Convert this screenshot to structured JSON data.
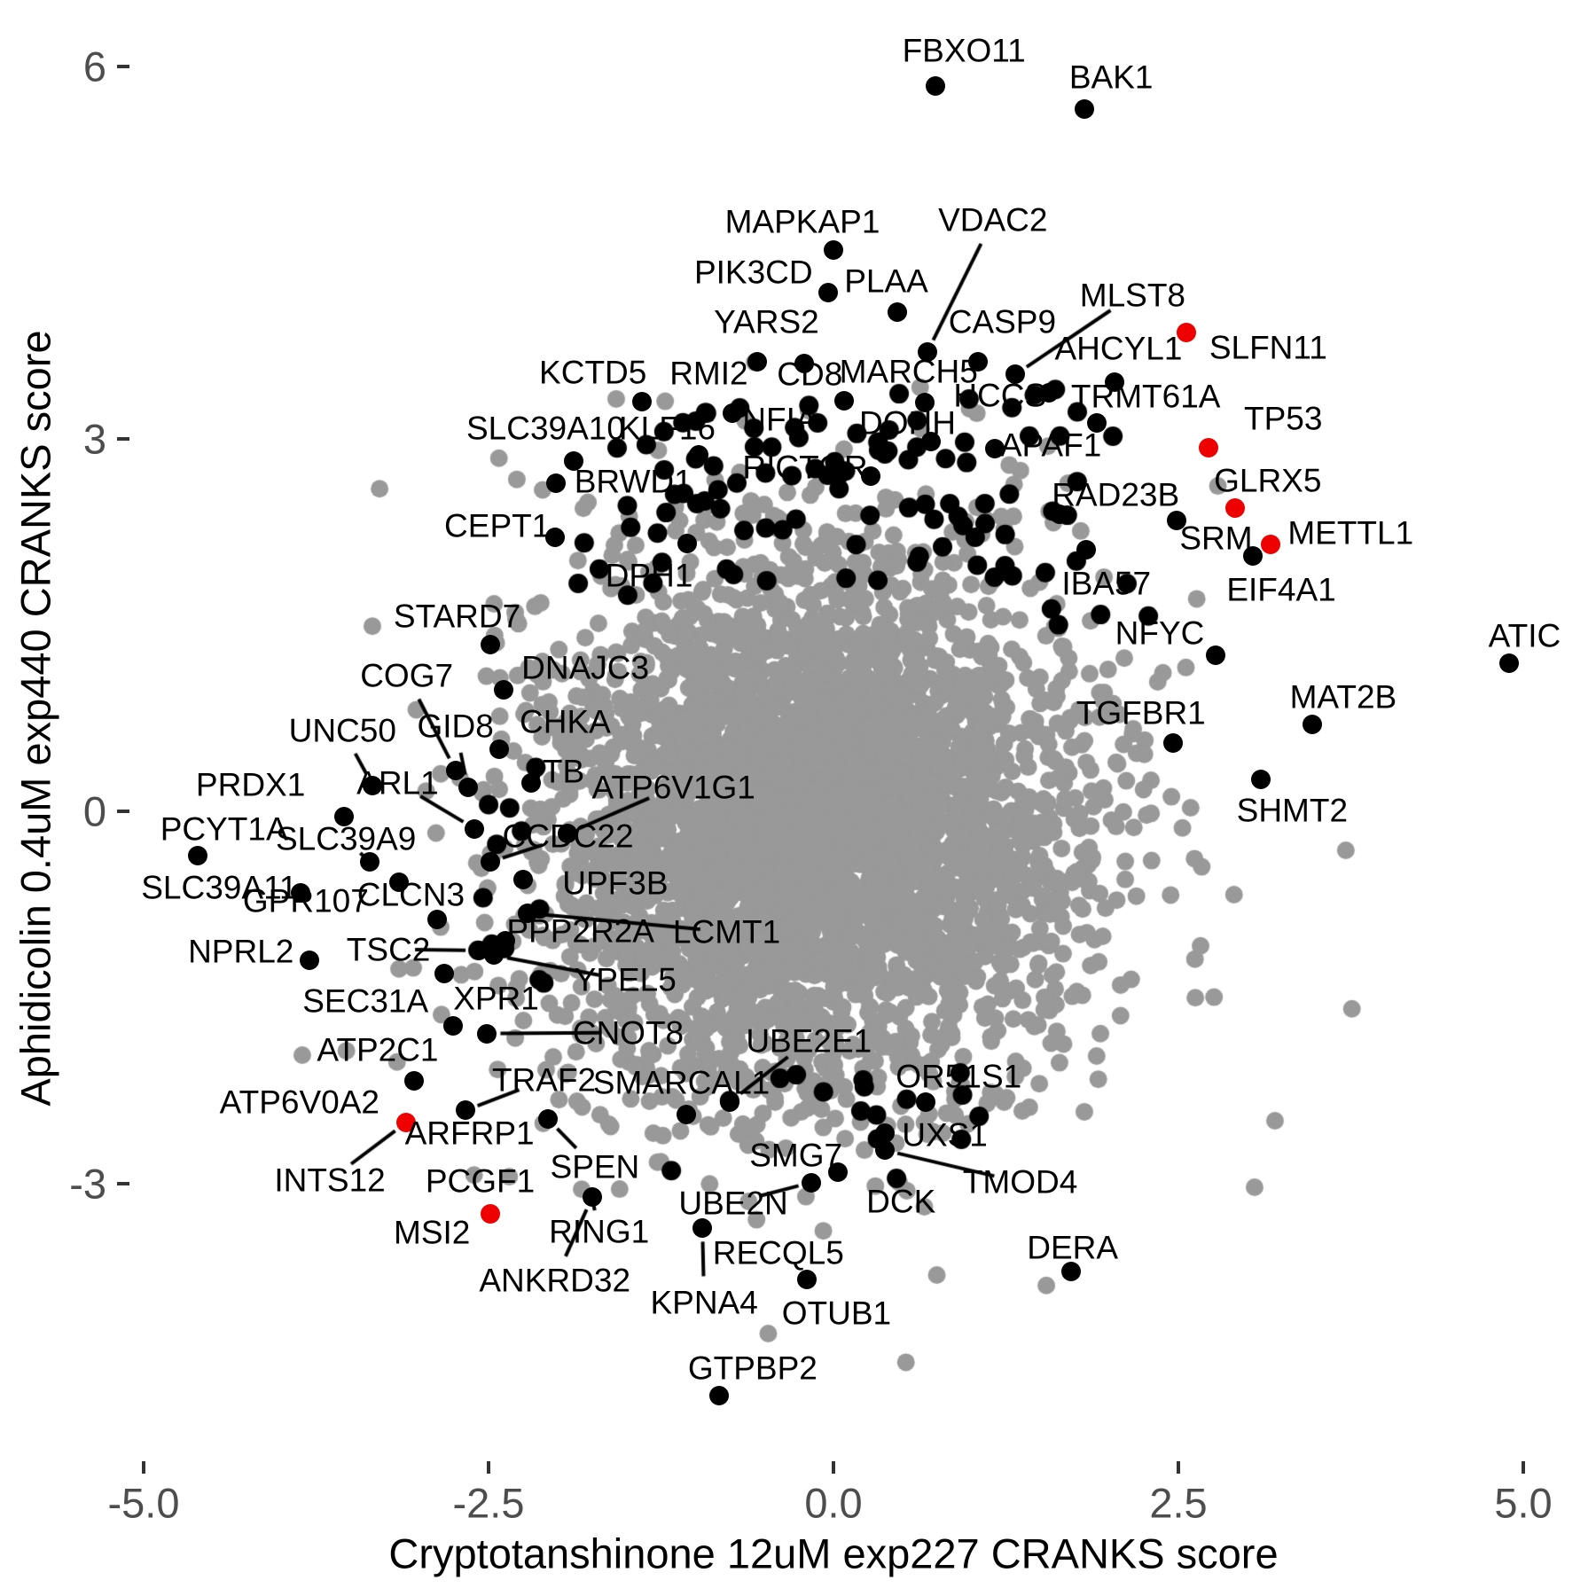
{
  "chart_data": {
    "type": "scatter",
    "title": "",
    "xlabel": "Cryptotanshinone 12uM exp227 CRANKS score",
    "ylabel": "Aphidicolin 0.4uM exp440 CRANKS score",
    "xlim": [
      -6.0,
      5.5
    ],
    "ylim": [
      -6.3,
      6.5
    ],
    "grid": false,
    "legend": "none",
    "xticks": [
      {
        "v": -5.0,
        "label": "-5.0"
      },
      {
        "v": -2.5,
        "label": "-2.5"
      },
      {
        "v": 0.0,
        "label": "0.0"
      },
      {
        "v": 2.5,
        "label": "2.5"
      },
      {
        "v": 5.0,
        "label": "5.0"
      }
    ],
    "yticks": [
      {
        "v": 6,
        "label": "6"
      },
      {
        "v": 3,
        "label": "3"
      },
      {
        "v": 0,
        "label": "0"
      },
      {
        "v": -3,
        "label": "-3"
      }
    ],
    "colors": {
      "point_default": "#000000",
      "point_highlight": "#ee0000",
      "cloud": "#999999",
      "axis_text": "#4d4d4d",
      "axis_title": "#000000"
    },
    "labeled_points": [
      {
        "name": "FBXO11",
        "x": 0.74,
        "y": 5.84,
        "ox": 32,
        "oy": -40,
        "red": false,
        "dot": true,
        "seg": false
      },
      {
        "name": "BAK1",
        "x": 1.82,
        "y": 5.66,
        "ox": 30,
        "oy": -36,
        "red": false,
        "dot": true,
        "seg": false
      },
      {
        "name": "MAPKAP1",
        "x": 0.0,
        "y": 4.52,
        "ox": -35,
        "oy": -32,
        "red": false,
        "dot": true,
        "seg": false
      },
      {
        "name": "PIK3CD",
        "x": -0.04,
        "y": 4.18,
        "ox": -84,
        "oy": -23,
        "red": false,
        "dot": true,
        "seg": false
      },
      {
        "name": "PLAA",
        "x": 0.46,
        "y": 4.02,
        "ox": -12,
        "oy": -35,
        "red": false,
        "dot": true,
        "seg": false
      },
      {
        "name": "VDAC2",
        "x": 0.68,
        "y": 3.7,
        "ox": 74,
        "oy": -149,
        "red": false,
        "dot": true,
        "seg": true
      },
      {
        "name": "YARS2",
        "x": -0.55,
        "y": 3.62,
        "ox": 10,
        "oy": -45,
        "red": false,
        "dot": true,
        "seg": false
      },
      {
        "name": "MLST8",
        "x": 1.32,
        "y": 3.52,
        "ox": 132,
        "oy": -89,
        "red": false,
        "dot": true,
        "seg": true
      },
      {
        "name": "CASP9",
        "x": 1.05,
        "y": 3.62,
        "ox": 27,
        "oy": -45,
        "red": false,
        "dot": true,
        "seg": false
      },
      {
        "name": "AHCYL1",
        "x": 2.04,
        "y": 3.46,
        "ox": 4,
        "oy": -38,
        "red": false,
        "dot": true,
        "seg": false
      },
      {
        "name": "SLFN11",
        "x": 2.56,
        "y": 3.86,
        "ox": 92,
        "oy": 17,
        "red": true,
        "dot": true,
        "seg": false
      },
      {
        "name": "KCTD5",
        "x": -1.39,
        "y": 3.3,
        "ox": -55,
        "oy": -33,
        "red": false,
        "dot": true,
        "seg": false
      },
      {
        "name": "RMI2",
        "x": -0.73,
        "y": 3.21,
        "ox": -27,
        "oy": -45,
        "red": false,
        "dot": true,
        "seg": false
      },
      {
        "name": "CD8",
        "x": -0.21,
        "y": 3.61,
        "ox": 6,
        "oy": 12,
        "red": false,
        "dot": true,
        "seg": false
      },
      {
        "name": "MARCH5",
        "x": 0.66,
        "y": 3.29,
        "ox": -18,
        "oy": -35,
        "red": false,
        "dot": true,
        "seg": false
      },
      {
        "name": "HCCS",
        "x": 1.56,
        "y": 3.37,
        "ox": -55,
        "oy": 3,
        "red": false,
        "dot": true,
        "seg": false
      },
      {
        "name": "TRMT61A",
        "x": 1.91,
        "y": 3.13,
        "ox": 55,
        "oy": -30,
        "red": false,
        "dot": true,
        "seg": false
      },
      {
        "name": "SLC39A10",
        "x": -1.88,
        "y": 2.82,
        "ox": -32,
        "oy": -37,
        "red": false,
        "dot": true,
        "seg": false
      },
      {
        "name": "KLF16",
        "x": -0.98,
        "y": 2.87,
        "ox": -35,
        "oy": -30,
        "red": false,
        "dot": true,
        "seg": false
      },
      {
        "name": "NFIA",
        "x": 0.08,
        "y": 3.31,
        "ox": -73,
        "oy": 21,
        "red": false,
        "dot": true,
        "seg": false
      },
      {
        "name": "DOHH",
        "x": 0.71,
        "y": 2.98,
        "ox": -27,
        "oy": -21,
        "red": false,
        "dot": true,
        "seg": false
      },
      {
        "name": "TP53",
        "x": 2.72,
        "y": 2.93,
        "ox": 84,
        "oy": -33,
        "red": true,
        "dot": true,
        "seg": false
      },
      {
        "name": "APAF1",
        "x": 1.17,
        "y": 2.92,
        "ox": 63,
        "oy": -4,
        "red": false,
        "dot": true,
        "seg": false
      },
      {
        "name": "RICTOR",
        "x": 0.27,
        "y": 2.7,
        "ox": -74,
        "oy": -10,
        "red": false,
        "dot": true,
        "seg": false
      },
      {
        "name": "GLRX5",
        "x": 2.91,
        "y": 2.44,
        "ox": 37,
        "oy": -31,
        "red": true,
        "dot": true,
        "seg": false
      },
      {
        "name": "BRWD1",
        "x": -2.01,
        "y": 2.64,
        "ox": 87,
        "oy": -2,
        "red": false,
        "dot": true,
        "seg": false
      },
      {
        "name": "RAD23B",
        "x": 1.64,
        "y": 2.39,
        "ox": 63,
        "oy": -22,
        "red": false,
        "dot": true,
        "seg": false
      },
      {
        "name": "SRM",
        "x": 2.49,
        "y": 2.34,
        "ox": 44,
        "oy": 20,
        "red": false,
        "dot": true,
        "seg": false
      },
      {
        "name": "METTL1",
        "x": 3.17,
        "y": 2.15,
        "ox": 90,
        "oy": -13,
        "red": true,
        "dot": true,
        "seg": false
      },
      {
        "name": "CEPT1",
        "x": -2.02,
        "y": 2.21,
        "ox": -65,
        "oy": -13,
        "red": false,
        "dot": true,
        "seg": false
      },
      {
        "name": "IBA57",
        "x": 1.83,
        "y": 2.11,
        "ox": 23,
        "oy": 38,
        "red": false,
        "dot": true,
        "seg": false
      },
      {
        "name": "EIF4A1",
        "x": 3.04,
        "y": 2.06,
        "ox": 32,
        "oy": 38,
        "red": false,
        "dot": true,
        "seg": false
      },
      {
        "name": "DPH1",
        "x": -1.06,
        "y": 2.16,
        "ox": -43,
        "oy": 36,
        "red": false,
        "dot": true,
        "seg": false
      },
      {
        "name": "NFYC",
        "x": 2.77,
        "y": 1.26,
        "ox": -63,
        "oy": -25,
        "red": false,
        "dot": true,
        "seg": false
      },
      {
        "name": "ATIC",
        "x": 4.9,
        "y": 1.19,
        "ox": 17,
        "oy": -31,
        "red": false,
        "dot": true,
        "seg": false
      },
      {
        "name": "STARD7",
        "x": -2.49,
        "y": 1.34,
        "ox": -37,
        "oy": -32,
        "red": false,
        "dot": true,
        "seg": false
      },
      {
        "name": "MAT2B",
        "x": 3.47,
        "y": 0.7,
        "ox": 35,
        "oy": -31,
        "red": false,
        "dot": true,
        "seg": false
      },
      {
        "name": "TGFBR1",
        "x": 2.46,
        "y": 0.55,
        "ox": -36,
        "oy": -34,
        "red": false,
        "dot": true,
        "seg": false
      },
      {
        "name": "SHMT2",
        "x": 3.1,
        "y": 0.26,
        "ox": 35,
        "oy": 35,
        "red": false,
        "dot": true,
        "seg": false
      },
      {
        "name": "COG7",
        "x": -2.74,
        "y": 0.33,
        "ox": -55,
        "oy": -107,
        "red": false,
        "dot": true,
        "seg": true
      },
      {
        "name": "DNAJC3",
        "x": -2.39,
        "y": 0.98,
        "ox": 92,
        "oy": -25,
        "red": false,
        "dot": true,
        "seg": false
      },
      {
        "name": "UNC50",
        "x": -3.34,
        "y": 0.21,
        "ox": -34,
        "oy": -62,
        "red": false,
        "dot": true,
        "seg": true
      },
      {
        "name": "GID8",
        "x": -2.65,
        "y": 0.19,
        "ox": -14,
        "oy": -69,
        "red": false,
        "dot": true,
        "seg": true
      },
      {
        "name": "ARL1",
        "x": -2.6,
        "y": -0.14,
        "ox": -87,
        "oy": -52,
        "red": false,
        "dot": true,
        "seg": true
      },
      {
        "name": "CHKA",
        "x": -2.42,
        "y": 0.5,
        "ox": 74,
        "oy": -31,
        "red": false,
        "dot": true,
        "seg": false
      },
      {
        "name": "JTB",
        "x": -2.19,
        "y": 0.23,
        "ox": 27,
        "oy": -13,
        "red": false,
        "dot": true,
        "seg": false
      },
      {
        "name": "ATP6V1G1",
        "x": -1.93,
        "y": -0.18,
        "ox": 120,
        "oy": -52,
        "red": false,
        "dot": true,
        "seg": true
      },
      {
        "name": "PRDX1",
        "x": -3.55,
        "y": -0.04,
        "ox": -105,
        "oy": -36,
        "red": false,
        "dot": true,
        "seg": false
      },
      {
        "name": "PCYT1A",
        "x": -4.61,
        "y": -0.36,
        "ox": 30,
        "oy": -30,
        "red": false,
        "dot": true,
        "seg": false
      },
      {
        "name": "SLC39A9",
        "x": -3.36,
        "y": -0.41,
        "ox": -27,
        "oy": -26,
        "red": false,
        "dot": true,
        "seg": true
      },
      {
        "name": "CCDC22",
        "x": -2.49,
        "y": -0.41,
        "ox": 88,
        "oy": -29,
        "red": false,
        "dot": true,
        "seg": true
      },
      {
        "name": "SLC39A11",
        "x": -3.86,
        "y": -0.66,
        "ox": -92,
        "oy": -6,
        "red": false,
        "dot": true,
        "seg": false
      },
      {
        "name": "GPR107",
        "x": -3.15,
        "y": -0.57,
        "ox": -105,
        "oy": 21,
        "red": false,
        "dot": true,
        "seg": false
      },
      {
        "name": "CLCN3",
        "x": -2.87,
        "y": -0.87,
        "ox": -30,
        "oy": -28,
        "red": false,
        "dot": true,
        "seg": false
      },
      {
        "name": "UPF3B",
        "x": -2.25,
        "y": -0.55,
        "ox": 104,
        "oy": 4,
        "red": false,
        "dot": true,
        "seg": false
      },
      {
        "name": "PPP2R2A",
        "x": -2.38,
        "y": -1.04,
        "ox": 85,
        "oy": -11,
        "red": false,
        "dot": true,
        "seg": false
      },
      {
        "name": "LCMT1",
        "x": -2.22,
        "y": -0.82,
        "ox": 225,
        "oy": 21,
        "red": false,
        "dot": true,
        "seg": true
      },
      {
        "name": "NPRL2",
        "x": -3.8,
        "y": -1.2,
        "ox": -77,
        "oy": -10,
        "red": false,
        "dot": true,
        "seg": false
      },
      {
        "name": "TSC2",
        "x": -2.57,
        "y": -1.12,
        "ox": -102,
        "oy": -1,
        "red": false,
        "dot": true,
        "seg": true
      },
      {
        "name": "YPEL5",
        "x": -2.46,
        "y": -1.16,
        "ox": 148,
        "oy": 28,
        "red": false,
        "dot": true,
        "seg": true
      },
      {
        "name": "SEC31A",
        "x": -2.82,
        "y": -1.31,
        "ox": -89,
        "oy": 31,
        "red": false,
        "dot": true,
        "seg": false
      },
      {
        "name": "XPR1",
        "x": -2.76,
        "y": -1.73,
        "ox": 49,
        "oy": -31,
        "red": false,
        "dot": true,
        "seg": false
      },
      {
        "name": "CNOT8",
        "x": -2.51,
        "y": -1.79,
        "ox": 159,
        "oy": -1,
        "red": false,
        "dot": true,
        "seg": true
      },
      {
        "name": "ATP2C1",
        "x": -3.04,
        "y": -2.17,
        "ox": -41,
        "oy": -35,
        "red": false,
        "dot": true,
        "seg": false
      },
      {
        "name": "UBE2E1",
        "x": -0.75,
        "y": -2.34,
        "ox": 89,
        "oy": -69,
        "red": false,
        "dot": true,
        "seg": true
      },
      {
        "name": "TRAF2",
        "x": -2.67,
        "y": -2.41,
        "ox": 89,
        "oy": -34,
        "red": false,
        "dot": true,
        "seg": true
      },
      {
        "name": "SMARCAL1",
        "x": -1.07,
        "y": -2.44,
        "ox": -5,
        "oy": -36,
        "red": false,
        "dot": true,
        "seg": false
      },
      {
        "name": "OR51S1",
        "x": 0.67,
        "y": -2.34,
        "ox": 37,
        "oy": -29,
        "red": false,
        "dot": true,
        "seg": false
      },
      {
        "name": "ATP6V0A2",
        "x": -3.87,
        "y": -2.34,
        "ox": 0,
        "oy": 0,
        "red": false,
        "dot": false,
        "seg": false
      },
      {
        "name": "ARFRP1",
        "x": -3.1,
        "y": -2.51,
        "ox": 72,
        "oy": 12,
        "red": true,
        "dot": true,
        "seg": false
      },
      {
        "name": "INTS12",
        "x": -3.65,
        "y": -2.97,
        "ox": 0,
        "oy": 0,
        "red": false,
        "dot": false,
        "seg": true,
        "segto": [
          -3.1,
          -2.51
        ]
      },
      {
        "name": "SPEN",
        "x": -2.07,
        "y": -2.48,
        "ox": 53,
        "oy": 54,
        "red": false,
        "dot": true,
        "seg": true
      },
      {
        "name": "PCGF1",
        "x": -2.49,
        "y": -3.24,
        "ox": -11,
        "oy": -37,
        "red": true,
        "dot": true,
        "seg": false
      },
      {
        "name": "MSI2",
        "x": -2.91,
        "y": -3.39,
        "ox": 0,
        "oy": 0,
        "red": false,
        "dot": false,
        "seg": false
      },
      {
        "name": "SMG7",
        "x": 0.03,
        "y": -2.91,
        "ox": -47,
        "oy": -19,
        "red": false,
        "dot": true,
        "seg": false
      },
      {
        "name": "UXS1",
        "x": 0.37,
        "y": -2.59,
        "ox": 68,
        "oy": 2,
        "red": false,
        "dot": true,
        "seg": false
      },
      {
        "name": "TMOD4",
        "x": 0.37,
        "y": -2.73,
        "ox": 153,
        "oy": 36,
        "red": false,
        "dot": true,
        "seg": true
      },
      {
        "name": "DCK",
        "x": 0.49,
        "y": -3.14,
        "ox": 0,
        "oy": 0,
        "red": false,
        "dot": false,
        "seg": false
      },
      {
        "name": "UBE2N",
        "x": -0.16,
        "y": -2.99,
        "ox": -88,
        "oy": 23,
        "red": false,
        "dot": true,
        "seg": true
      },
      {
        "name": "RING1",
        "x": -1.75,
        "y": -3.11,
        "ox": 8,
        "oy": 39,
        "red": false,
        "dot": true,
        "seg": true
      },
      {
        "name": "ANKRD32",
        "x": -2.02,
        "y": -3.78,
        "ox": 0,
        "oy": 0,
        "red": false,
        "dot": false,
        "seg": true,
        "segto": [
          -1.75,
          -3.11
        ]
      },
      {
        "name": "RECQL5",
        "x": -0.4,
        "y": -3.56,
        "ox": 0,
        "oy": 0,
        "red": false,
        "dot": false,
        "seg": false
      },
      {
        "name": "KPNA4",
        "x": -0.95,
        "y": -3.36,
        "ox": 2,
        "oy": 84,
        "red": false,
        "dot": true,
        "seg": true
      },
      {
        "name": "OTUB1",
        "x": -0.19,
        "y": -3.77,
        "ox": 33,
        "oy": 38,
        "red": false,
        "dot": true,
        "seg": false
      },
      {
        "name": "DERA",
        "x": 1.72,
        "y": -3.71,
        "ox": 2,
        "oy": -27,
        "red": false,
        "dot": true,
        "seg": false
      },
      {
        "name": "GTPBP2",
        "x": -0.83,
        "y": -4.71,
        "ox": 38,
        "oy": -31,
        "red": false,
        "dot": true,
        "seg": false
      }
    ],
    "background_cloud": {
      "description": "dense unlabeled grey gene cloud, approx gaussian blob",
      "color": "#999999",
      "center": [
        -0.18,
        -0.08
      ],
      "sd_core": [
        0.92,
        1.02
      ],
      "n_core": 3000,
      "sd_mid": [
        1.25,
        1.35
      ],
      "n_mid": 650,
      "sd_fringe": [
        1.62,
        1.7
      ],
      "n_fringe": 170,
      "clip_sigma": 2.6,
      "seed": 42
    },
    "unlabeled_black_points": {
      "description": "unlabeled significant (black) genes ringing the cloud",
      "color": "#000000",
      "seed": 1337,
      "regions": [
        {
          "n": 75,
          "x": [
            -1.7,
            2.15
          ],
          "y": [
            2.25,
            3.45
          ]
        },
        {
          "n": 18,
          "x": [
            -1.5,
            1.8
          ],
          "y": [
            1.85,
            2.3
          ]
        },
        {
          "n": 6,
          "x": [
            -2.1,
            -1.2
          ],
          "y": [
            1.7,
            2.4
          ]
        },
        {
          "n": 12,
          "x": [
            -2.75,
            -2.0
          ],
          "y": [
            -1.9,
            0.4
          ]
        },
        {
          "n": 12,
          "x": [
            -1.3,
            1.2
          ],
          "y": [
            -3.0,
            -2.1
          ]
        },
        {
          "n": 5,
          "x": [
            1.5,
            2.3
          ],
          "y": [
            1.2,
            2.1
          ]
        },
        {
          "n": 4,
          "x": [
            0.2,
            1.4
          ],
          "y": [
            -2.5,
            -2.0
          ]
        }
      ]
    }
  }
}
